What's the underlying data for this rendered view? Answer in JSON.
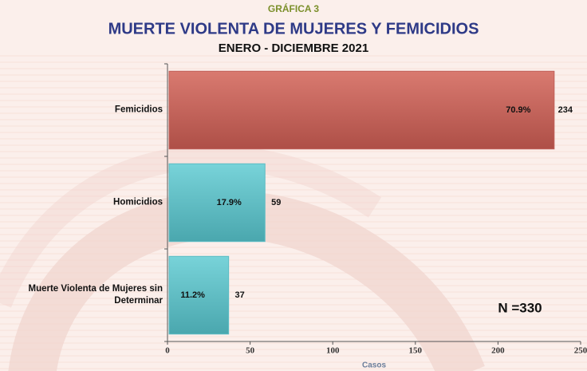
{
  "chart_data": {
    "type": "hbar",
    "title": "GRÁFICA 3",
    "subtitle": "MUERTE VIOLENTA DE MUJERES Y FEMICIDIOS",
    "period": "ENERO - DICIEMBRE 2021",
    "categories": [
      "Femicidios",
      "Homicidios",
      "Muerte Violenta de Mujeres sin Determinar"
    ],
    "values": [
      234,
      59,
      37
    ],
    "percent_labels": [
      "70.9%",
      "17.9%",
      "11.2%"
    ],
    "colors": [
      "#c0605a",
      "#5bbcc4",
      "#5bbcc4"
    ],
    "xlim": [
      0,
      250
    ],
    "xticks": [
      0,
      50,
      100,
      150,
      200,
      250
    ],
    "x_label": "Casos",
    "annotation": "N =330"
  }
}
